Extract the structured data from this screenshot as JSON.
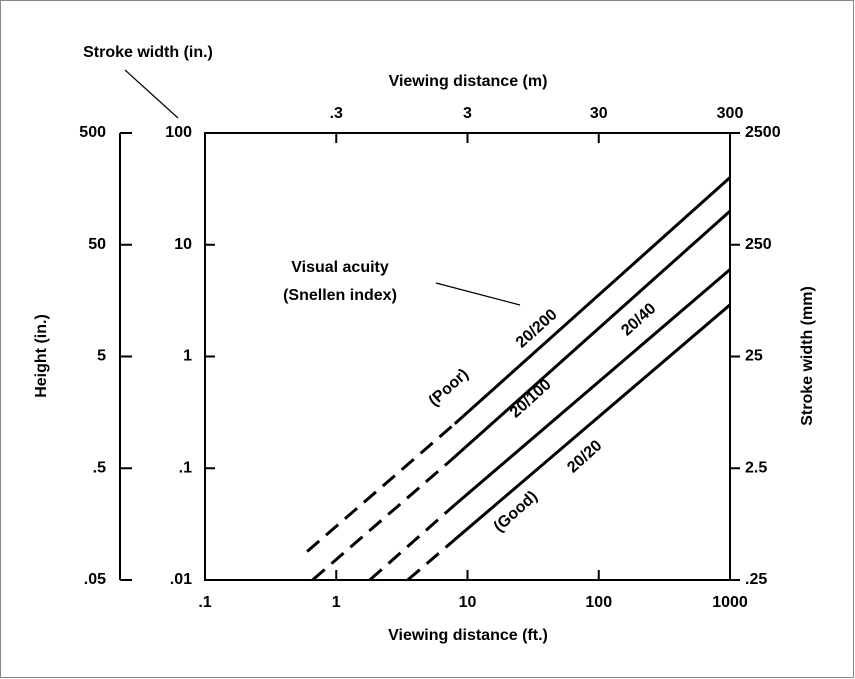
{
  "chart_data": {
    "type": "line",
    "x_label": "Viewing distance (ft.)",
    "x2_label": "Viewing distance (m)",
    "y_label": "Stroke width (in.)",
    "y2_label": "Stroke width (mm)",
    "y3_label": "Height (in.)",
    "log_x": true,
    "log_y": true,
    "xlim": [
      0.1,
      1000
    ],
    "xticks": [
      {
        "value": 0.1,
        "label": ".1"
      },
      1,
      10,
      100,
      1000
    ],
    "x2lim": [
      0.03,
      300
    ],
    "x2ticks": [
      {
        "value": 0.3,
        "label": ".3"
      },
      3,
      30,
      300
    ],
    "ylim": [
      0.01,
      100
    ],
    "yticks": [
      {
        "value": 0.01,
        "label": ".01"
      },
      {
        "value": 0.1,
        "label": ".1"
      },
      1,
      10,
      100
    ],
    "y2lim": [
      0.25,
      2500
    ],
    "y2ticks": [
      {
        "value": 0.25,
        "label": ".25"
      },
      2.5,
      25,
      250,
      2500
    ],
    "y3lim": [
      0.05,
      500
    ],
    "y3ticks": [
      {
        "value": 0.05,
        "label": ".05"
      },
      {
        "value": 0.5,
        "label": ".5"
      },
      5,
      50,
      500
    ],
    "line_styles": [
      "dashed",
      "solid"
    ],
    "series": [
      {
        "name": "20/200",
        "color": "#000000",
        "x": [
          0.6,
          8,
          1000
        ],
        "values": [
          0.018,
          0.25,
          40
        ]
      },
      {
        "name": "20/100",
        "color": "#000000",
        "x": [
          0.66,
          7.6,
          1000
        ],
        "values": [
          0.01,
          0.12,
          20
        ]
      },
      {
        "name": "20/40",
        "color": "#000000",
        "x": [
          1.8,
          8,
          1000
        ],
        "values": [
          0.01,
          0.047,
          6
        ]
      },
      {
        "name": "20/20",
        "color": "#000000",
        "x": [
          3.5,
          8,
          1000
        ],
        "values": [
          0.01,
          0.023,
          2.9
        ]
      }
    ],
    "annotations": [
      "Visual acuity",
      "(Snellen index)",
      "(Poor)",
      "(Good)"
    ]
  }
}
